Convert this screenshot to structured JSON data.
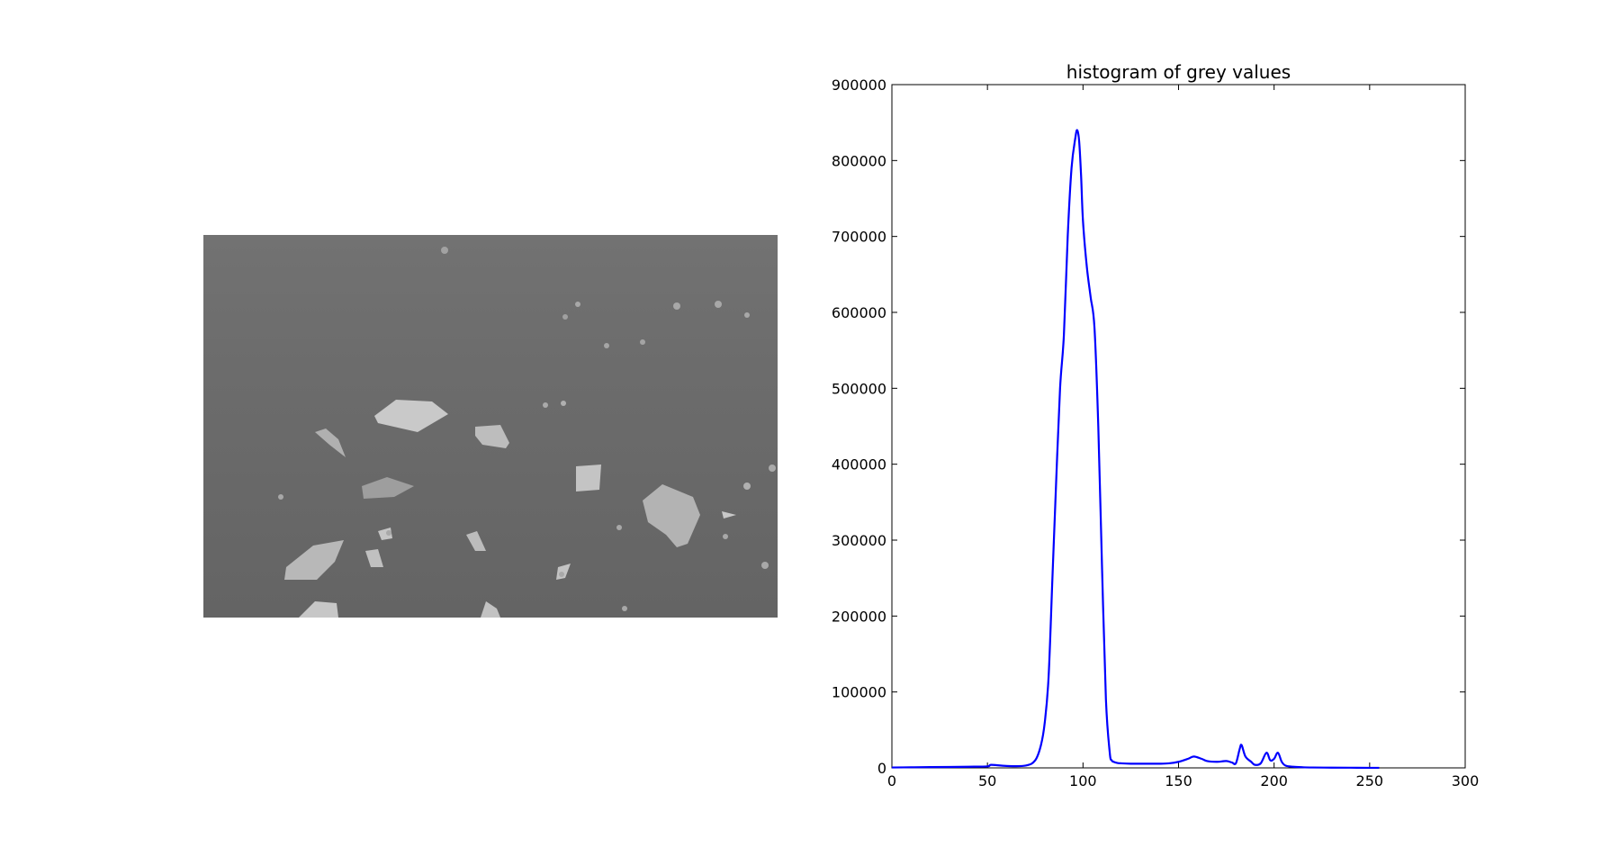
{
  "image_panel": {
    "description_icon": "micrograph-image",
    "background_color": "#6a6a6a"
  },
  "chart_data": {
    "type": "line",
    "title": "histogram of grey values",
    "xlabel": "",
    "ylabel": "",
    "xlim": [
      0,
      300
    ],
    "ylim": [
      0,
      900000
    ],
    "xticks": [
      0,
      50,
      100,
      150,
      200,
      250,
      300
    ],
    "yticks": [
      0,
      100000,
      200000,
      300000,
      400000,
      500000,
      600000,
      700000,
      800000,
      900000
    ],
    "grid": false,
    "legend": "none",
    "series": [
      {
        "color": "#0000ff",
        "x": [
          0,
          10,
          20,
          30,
          40,
          50,
          52,
          60,
          70,
          75,
          78,
          80,
          82,
          84,
          86,
          88,
          90,
          92,
          94,
          96,
          97,
          98,
          99,
          100,
          102,
          104,
          106,
          108,
          110,
          112,
          114,
          115,
          116,
          118,
          120,
          125,
          130,
          140,
          145,
          150,
          155,
          158,
          162,
          165,
          170,
          175,
          178,
          180,
          182,
          183,
          185,
          188,
          190,
          193,
          196,
          198,
          200,
          202,
          204,
          206,
          210,
          215,
          220,
          230,
          240,
          250,
          255
        ],
        "y": [
          500,
          800,
          1000,
          1200,
          1500,
          2000,
          4000,
          2500,
          3000,
          10000,
          30000,
          60000,
          120000,
          250000,
          380000,
          500000,
          570000,
          700000,
          790000,
          830000,
          840000,
          825000,
          780000,
          720000,
          660000,
          620000,
          580000,
          450000,
          260000,
          90000,
          20000,
          10000,
          8000,
          6500,
          6000,
          5500,
          5500,
          5500,
          6000,
          8000,
          12000,
          15000,
          12000,
          9000,
          8000,
          9000,
          7000,
          6000,
          25000,
          30000,
          15000,
          8000,
          4000,
          6000,
          20000,
          10000,
          12000,
          20000,
          8000,
          3000,
          1500,
          800,
          500,
          300,
          200,
          100,
          50
        ]
      }
    ]
  }
}
